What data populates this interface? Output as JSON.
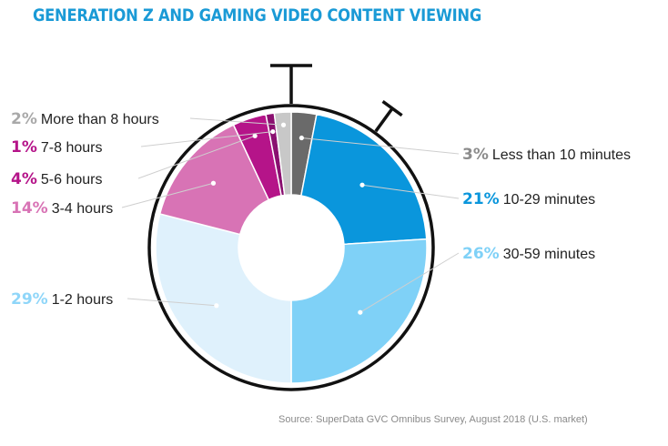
{
  "title": "GENERATION Z AND GAMING VIDEO CONTENT VIEWING",
  "source": "SuperData GVC Omnibus Survey, August 2018 (U.S. market)",
  "source_prefix": "Source: ",
  "chart_data": {
    "type": "pie",
    "title": "GENERATION Z AND GAMING VIDEO CONTENT VIEWING",
    "slices": [
      {
        "label": "Less than 10 minutes",
        "value": 3,
        "pct_text": "3%",
        "color": "#6a6a6a",
        "label_color": "#8c8c8c",
        "side": "right"
      },
      {
        "label": "10-29 minutes",
        "value": 21,
        "pct_text": "21%",
        "color": "#0a96dc",
        "label_color": "#0a96dc",
        "side": "right"
      },
      {
        "label": "30-59 minutes",
        "value": 26,
        "pct_text": "26%",
        "color": "#7fd1f7",
        "label_color": "#7fd1f7",
        "side": "right"
      },
      {
        "label": "1-2 hours",
        "value": 29,
        "pct_text": "29%",
        "color": "#dff1fc",
        "label_color": "#8fd6f9",
        "side": "left"
      },
      {
        "label": "3-4 hours",
        "value": 14,
        "pct_text": "14%",
        "color": "#d873b5",
        "label_color": "#d873b5",
        "side": "left"
      },
      {
        "label": "5-6 hours",
        "value": 4,
        "pct_text": "4%",
        "color": "#b51489",
        "label_color": "#b51489",
        "side": "left"
      },
      {
        "label": "7-8 hours",
        "value": 1,
        "pct_text": "1%",
        "color": "#8a1070",
        "label_color": "#b51489",
        "side": "left"
      },
      {
        "label": "More than 8 hours",
        "value": 2,
        "pct_text": "2%",
        "color": "#c8c8c8",
        "label_color": "#a9a9a9",
        "side": "left"
      }
    ],
    "style": "donut inside a stopwatch outline",
    "legend": "none (direct labels)"
  }
}
